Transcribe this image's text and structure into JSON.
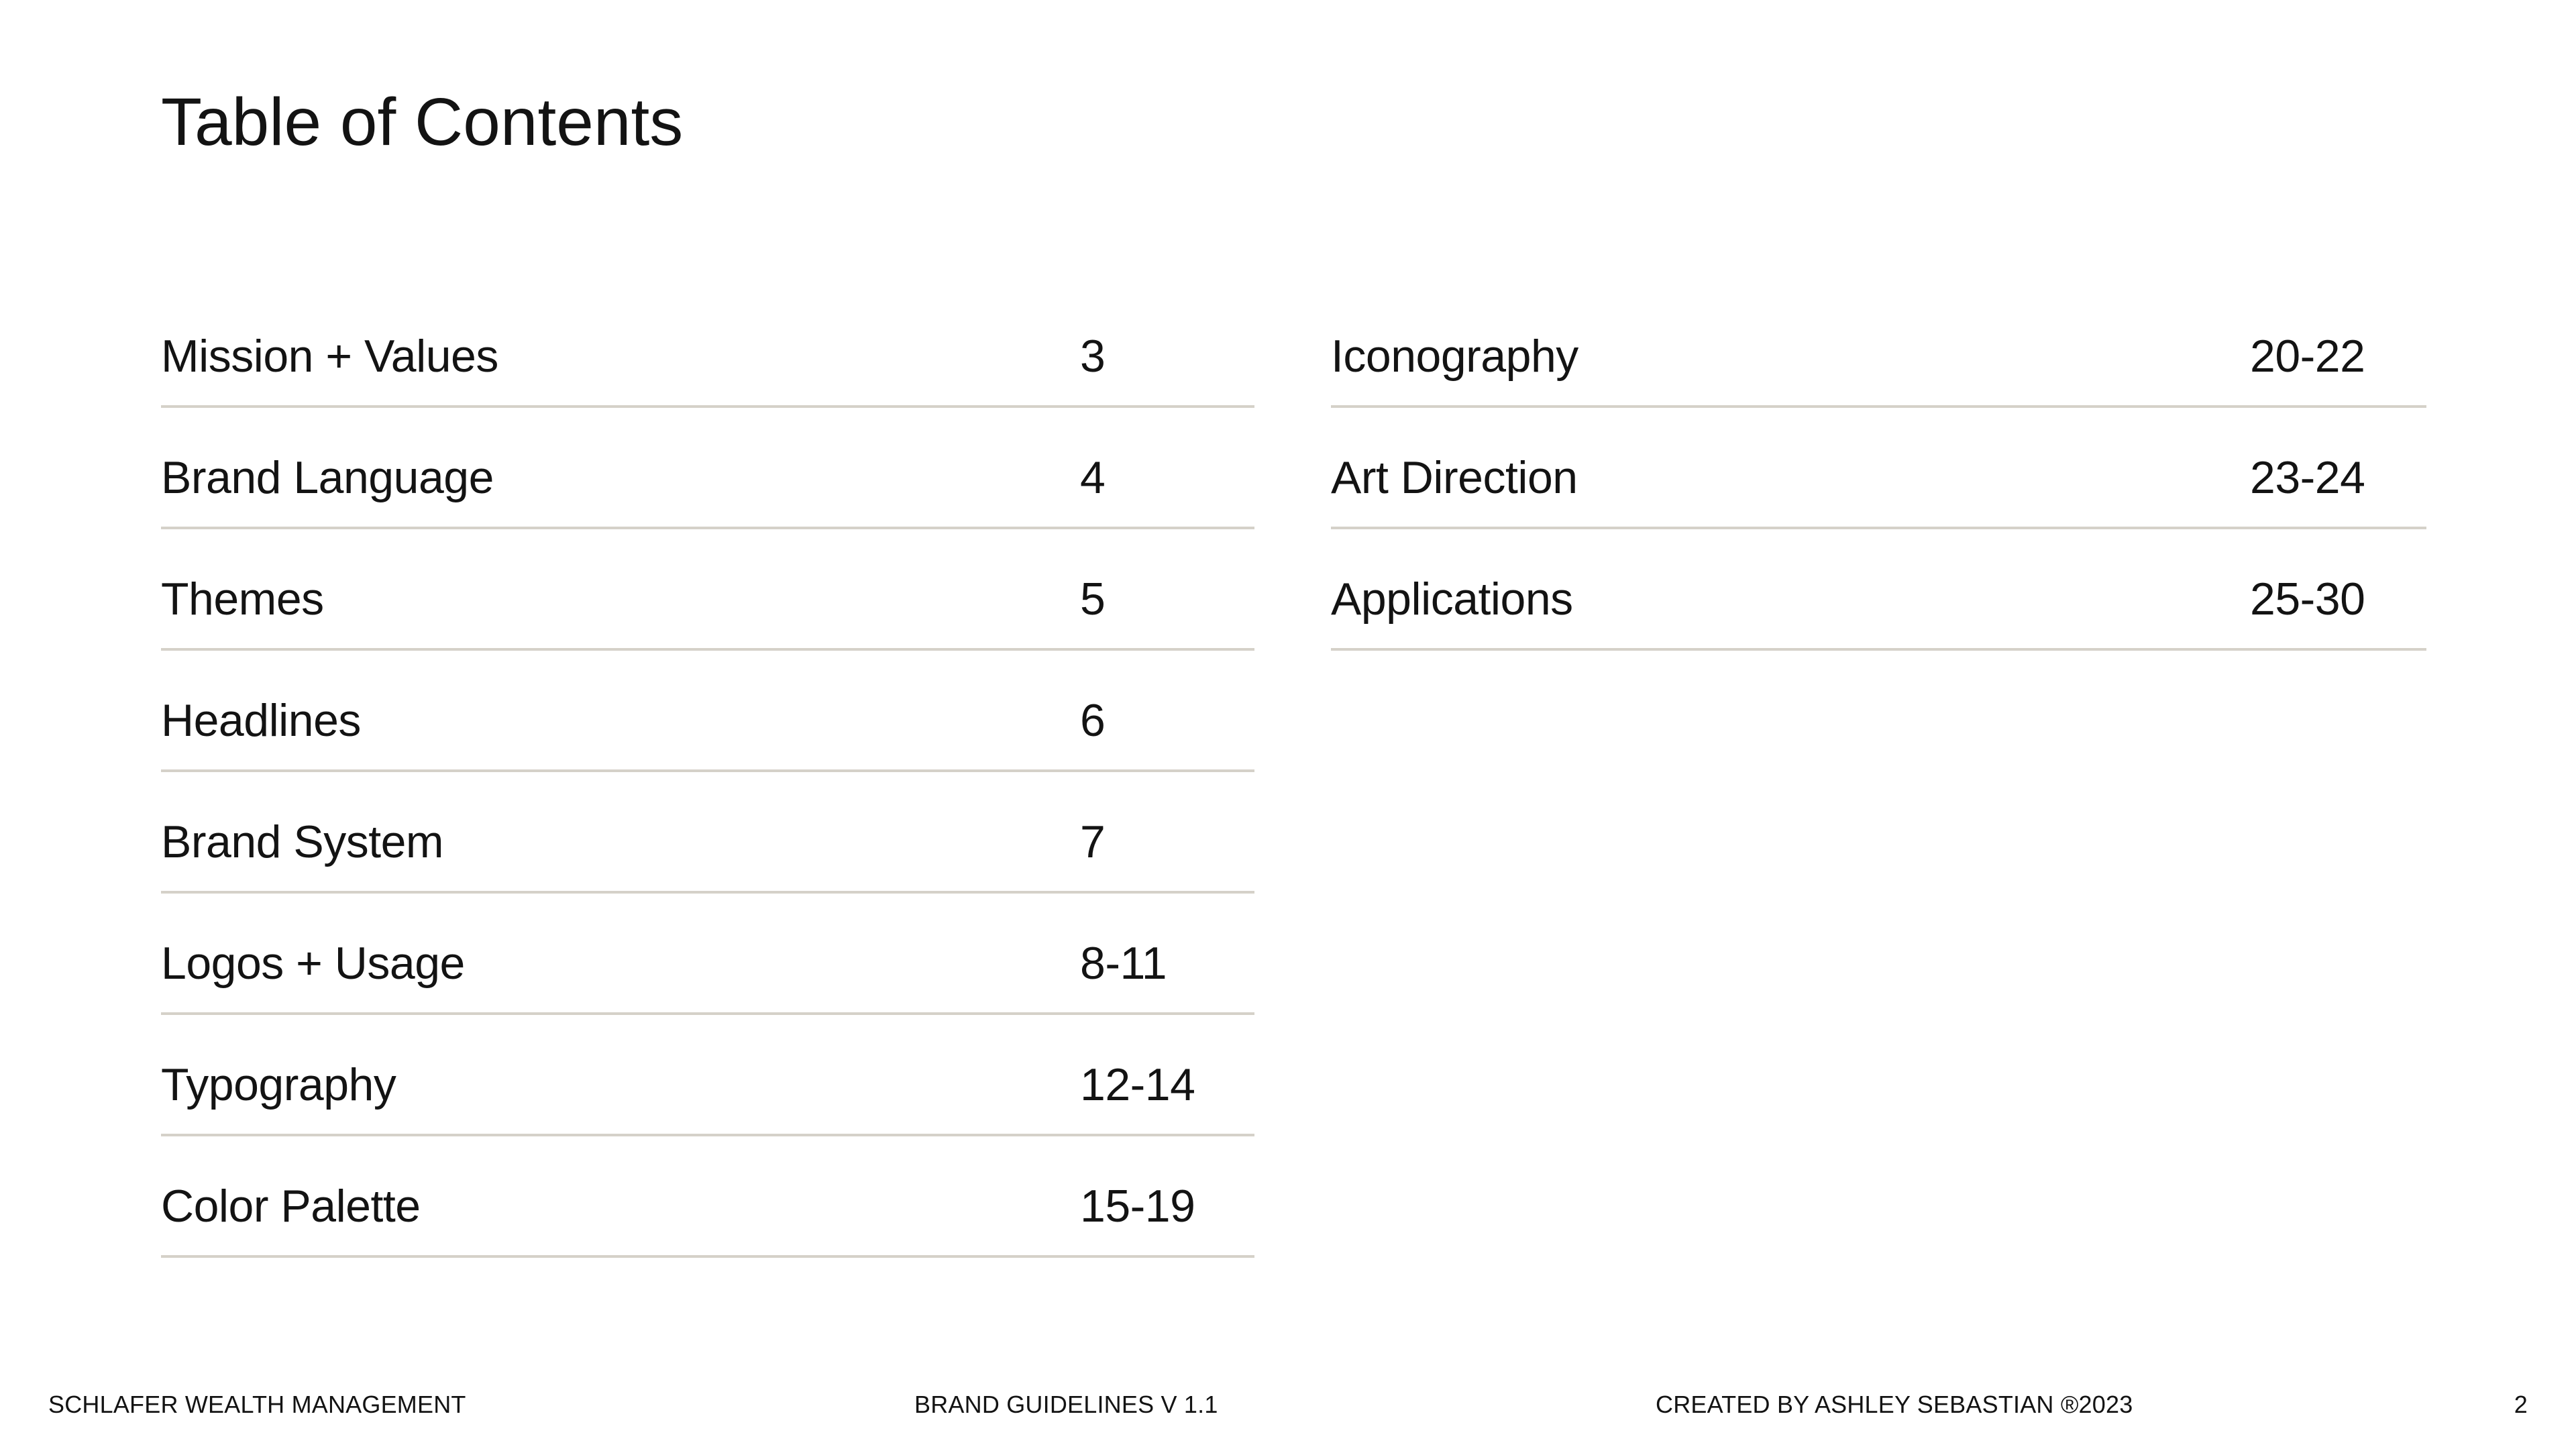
{
  "page": {
    "title": "Table of Contents"
  },
  "toc": {
    "left_column": [
      {
        "label": "Mission + Values",
        "pages": "3"
      },
      {
        "label": "Brand Language",
        "pages": "4"
      },
      {
        "label": "Themes",
        "pages": "5"
      },
      {
        "label": "Headlines",
        "pages": "6"
      },
      {
        "label": "Brand System",
        "pages": "7"
      },
      {
        "label": "Logos + Usage",
        "pages": "8-11"
      },
      {
        "label": "Typography",
        "pages": "12-14"
      },
      {
        "label": "Color Palette",
        "pages": "15-19"
      }
    ],
    "right_column": [
      {
        "label": "Iconography",
        "pages": "20-22"
      },
      {
        "label": "Art Direction",
        "pages": "23-24"
      },
      {
        "label": "Applications",
        "pages": "25-30"
      }
    ]
  },
  "footer": {
    "company": "SCHLAFER WEALTH MANAGEMENT",
    "document": "BRAND GUIDELINES V 1.1",
    "credit": "CREATED BY ASHLEY SEBASTIAN ®2023",
    "page_number": "2"
  },
  "colors": {
    "background": "#ffffff",
    "text": "#131313",
    "divider": "#d5d1c9"
  }
}
